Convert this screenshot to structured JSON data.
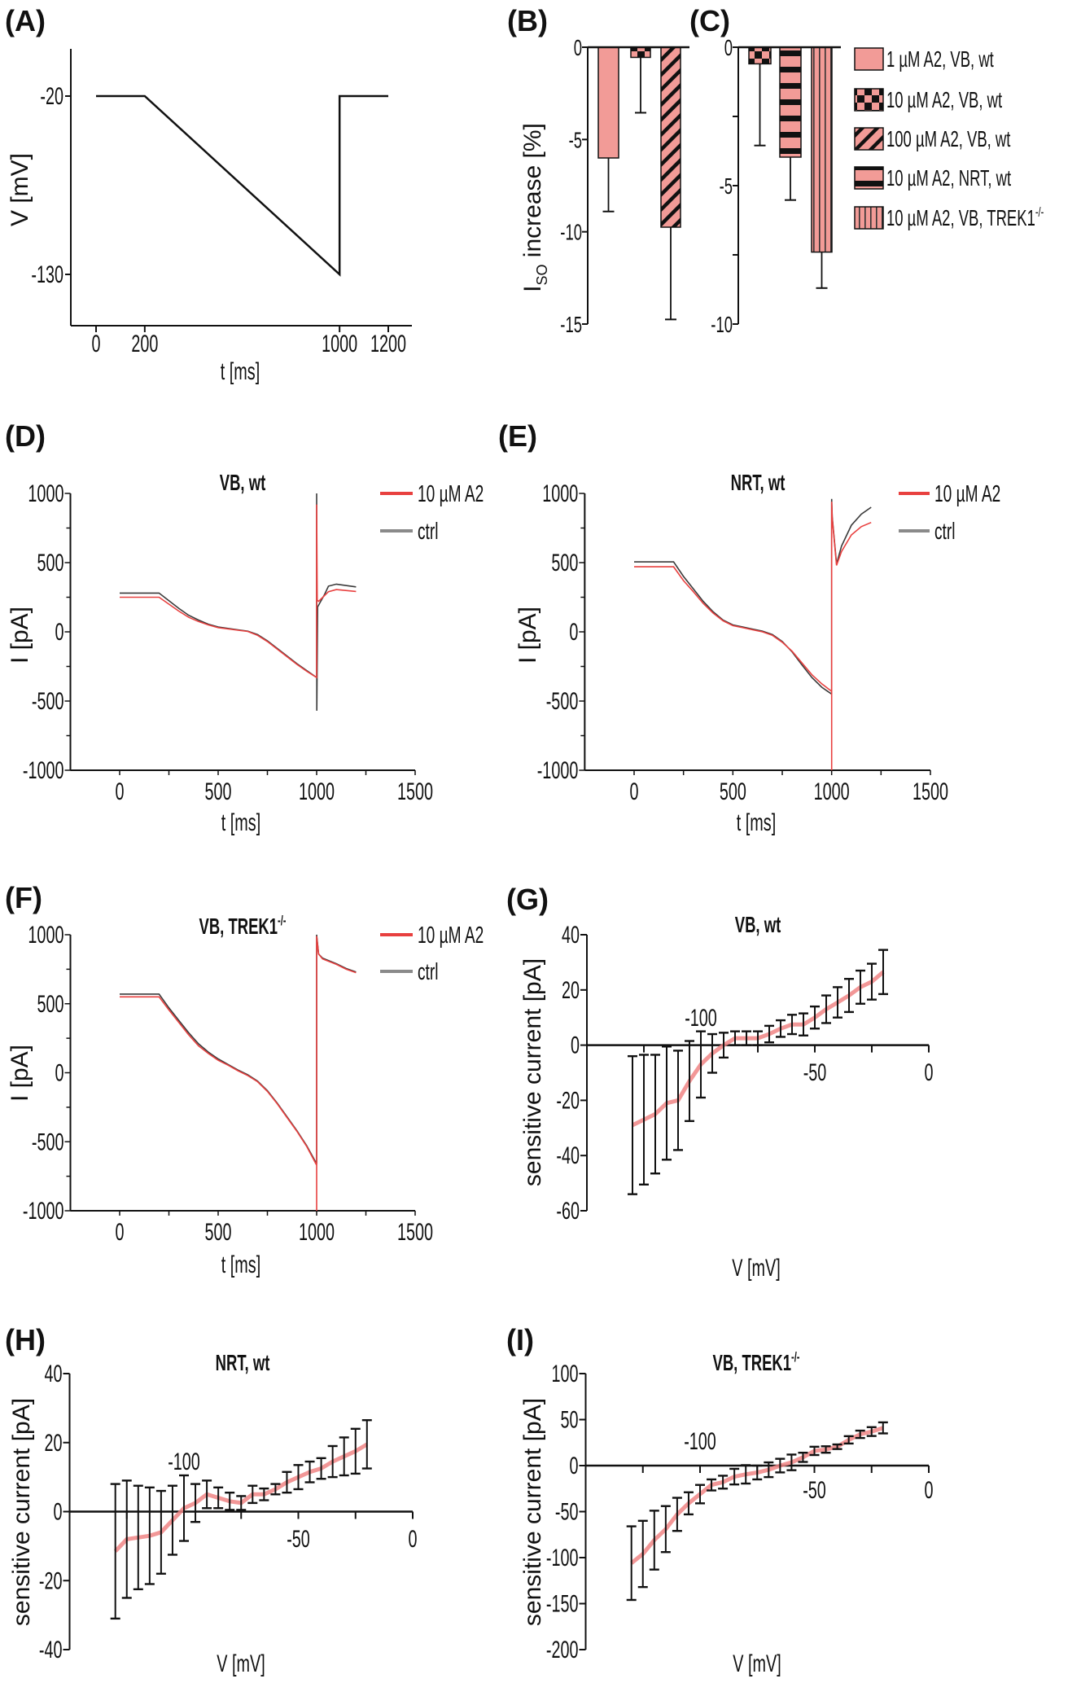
{
  "colors": {
    "bar_fill": "#f29b97",
    "a2_trace": "#e8403f",
    "ctrl_trace": "#3a3a3a",
    "ctrl_legend": "#8a8a8a",
    "iv_line": "#f08585",
    "axis": "#111111"
  },
  "chart_data": [
    {
      "panel": "(A)",
      "type": "line",
      "xlabel": "t [ms]",
      "ylabel": "V [mV]",
      "xticks": [
        0,
        200,
        1000,
        1200
      ],
      "yticks": [
        -20,
        -130
      ],
      "series": [
        {
          "x": [
            0,
            200,
            1000,
            1000,
            1200
          ],
          "y": [
            -20,
            -20,
            -130,
            -20,
            -20
          ],
          "color": "#111111"
        }
      ]
    },
    {
      "panel": "(B)",
      "type": "bar",
      "ylabel": {
        "main": "I",
        "sub": "SO",
        "rest": " increase [%]"
      },
      "yticks": [
        0,
        -5,
        -10,
        -15
      ],
      "ylim": [
        -15,
        0
      ],
      "bars": [
        {
          "legend_index": 0,
          "value": -6.0,
          "error": 2.9,
          "pattern": "solid"
        },
        {
          "legend_index": 1,
          "value": -0.55,
          "error": 3.0,
          "pattern": "checker"
        },
        {
          "legend_index": 2,
          "value": -9.75,
          "error": 5.0,
          "pattern": "diagonal"
        }
      ]
    },
    {
      "panel": "(C)",
      "type": "bar",
      "yticks": [
        0,
        -5,
        -10
      ],
      "minor_yticks": [
        -2.5,
        -7.5
      ],
      "ylim": [
        -10,
        0
      ],
      "bars": [
        {
          "legend_index": 1,
          "value": -0.6,
          "error": 2.95,
          "pattern": "checker"
        },
        {
          "legend_index": 3,
          "value": -3.97,
          "error": 1.55,
          "pattern": "horizontal"
        },
        {
          "legend_index": 4,
          "value": -7.4,
          "error": 1.3,
          "pattern": "vertical"
        }
      ],
      "legend": [
        {
          "text": "1 µM A2, VB, wt",
          "sup": "",
          "pattern": "solid"
        },
        {
          "text": "10 µM A2, VB, wt",
          "sup": "",
          "pattern": "checker"
        },
        {
          "text": "100 µM A2, VB, wt",
          "sup": "",
          "pattern": "diagonal"
        },
        {
          "text": "10 µM A2, NRT, wt",
          "sup": "",
          "pattern": "horizontal"
        },
        {
          "text": "10 µM A2, VB, TREK1",
          "sup": "-/-",
          "pattern": "vertical"
        }
      ],
      "legend_placement": "right"
    },
    {
      "panel": "(D)",
      "type": "line",
      "title": "VB, wt",
      "title_sup": "",
      "xlabel": "t [ms]",
      "ylabel": "I [pA]",
      "xticks": [
        0,
        500,
        1000,
        1500
      ],
      "yticks": [
        -1000,
        -500,
        0,
        500,
        1000
      ],
      "xlim": [
        -250,
        1500
      ],
      "ylim": [
        -1000,
        1000
      ],
      "legend_placement": "top-right",
      "series": [
        {
          "name": "ctrl",
          "color": "#3a3a3a",
          "points": [
            [
              0,
              280
            ],
            [
              200,
              280
            ],
            [
              250,
              225
            ],
            [
              300,
              170
            ],
            [
              350,
              120
            ],
            [
              400,
              85
            ],
            [
              450,
              55
            ],
            [
              500,
              35
            ],
            [
              600,
              15
            ],
            [
              650,
              5
            ],
            [
              700,
              -20
            ],
            [
              750,
              -65
            ],
            [
              800,
              -120
            ],
            [
              850,
              -175
            ],
            [
              900,
              -230
            ],
            [
              950,
              -280
            ],
            [
              1000,
              -330
            ],
            [
              1000,
              1000
            ],
            [
              1001,
              -570
            ],
            [
              1005,
              180
            ],
            [
              1040,
              270
            ],
            [
              1060,
              330
            ],
            [
              1100,
              345
            ],
            [
              1200,
              325
            ]
          ]
        },
        {
          "name": "10 µM A2",
          "color": "#e8403f",
          "points": [
            [
              0,
              250
            ],
            [
              200,
              250
            ],
            [
              250,
              200
            ],
            [
              300,
              150
            ],
            [
              350,
              105
            ],
            [
              400,
              75
            ],
            [
              450,
              50
            ],
            [
              500,
              30
            ],
            [
              600,
              12
            ],
            [
              650,
              3
            ],
            [
              700,
              -25
            ],
            [
              750,
              -70
            ],
            [
              800,
              -125
            ],
            [
              850,
              -180
            ],
            [
              900,
              -235
            ],
            [
              950,
              -285
            ],
            [
              1000,
              -330
            ],
            [
              1000,
              920
            ],
            [
              1003,
              230
            ],
            [
              1010,
              220
            ],
            [
              1060,
              290
            ],
            [
              1100,
              305
            ],
            [
              1200,
              292
            ]
          ]
        }
      ]
    },
    {
      "panel": "(E)",
      "type": "line",
      "title": "NRT, wt",
      "title_sup": "",
      "xlabel": "t [ms]",
      "ylabel": "I [pA]",
      "xticks": [
        0,
        500,
        1000,
        1500
      ],
      "yticks": [
        -1000,
        -500,
        0,
        500,
        1000
      ],
      "xlim": [
        -250,
        1500
      ],
      "ylim": [
        -1000,
        1000
      ],
      "legend_placement": "top-right",
      "series": [
        {
          "name": "ctrl",
          "color": "#3a3a3a",
          "points": [
            [
              0,
              505
            ],
            [
              200,
              505
            ],
            [
              250,
              400
            ],
            [
              300,
              310
            ],
            [
              350,
              220
            ],
            [
              400,
              145
            ],
            [
              450,
              85
            ],
            [
              500,
              50
            ],
            [
              550,
              35
            ],
            [
              600,
              20
            ],
            [
              650,
              5
            ],
            [
              700,
              -20
            ],
            [
              750,
              -70
            ],
            [
              800,
              -145
            ],
            [
              850,
              -240
            ],
            [
              900,
              -330
            ],
            [
              950,
              -400
            ],
            [
              1000,
              -450
            ],
            [
              1000,
              960
            ],
            [
              1003,
              830
            ],
            [
              1025,
              490
            ],
            [
              1050,
              620
            ],
            [
              1100,
              770
            ],
            [
              1150,
              850
            ],
            [
              1200,
              900
            ]
          ]
        },
        {
          "name": "10 µM A2",
          "color": "#e8403f",
          "points": [
            [
              0,
              470
            ],
            [
              200,
              470
            ],
            [
              250,
              370
            ],
            [
              300,
              290
            ],
            [
              350,
              205
            ],
            [
              400,
              135
            ],
            [
              450,
              80
            ],
            [
              500,
              45
            ],
            [
              550,
              30
            ],
            [
              600,
              15
            ],
            [
              650,
              0
            ],
            [
              700,
              -25
            ],
            [
              750,
              -75
            ],
            [
              800,
              -140
            ],
            [
              850,
              -225
            ],
            [
              900,
              -310
            ],
            [
              950,
              -375
            ],
            [
              1000,
              -430
            ],
            [
              1000,
              -1000
            ],
            [
              1000,
              940
            ],
            [
              1003,
              820
            ],
            [
              1025,
              480
            ],
            [
              1050,
              580
            ],
            [
              1100,
              700
            ],
            [
              1150,
              760
            ],
            [
              1200,
              790
            ]
          ]
        }
      ]
    },
    {
      "panel": "(F)",
      "type": "line",
      "title": "VB, TREK1",
      "title_sup": "-/-",
      "xlabel": "t [ms]",
      "ylabel": "I [pA]",
      "xticks": [
        0,
        500,
        1000,
        1500
      ],
      "yticks": [
        -1000,
        -500,
        0,
        500,
        1000
      ],
      "xlim": [
        -250,
        1500
      ],
      "ylim": [
        -1000,
        1000
      ],
      "legend_placement": "top-right",
      "series": [
        {
          "name": "ctrl",
          "color": "#3a3a3a",
          "points": [
            [
              0,
              570
            ],
            [
              200,
              570
            ],
            [
              250,
              470
            ],
            [
              300,
              380
            ],
            [
              350,
              290
            ],
            [
              400,
              210
            ],
            [
              450,
              150
            ],
            [
              500,
              100
            ],
            [
              550,
              60
            ],
            [
              600,
              20
            ],
            [
              650,
              -15
            ],
            [
              700,
              -60
            ],
            [
              750,
              -130
            ],
            [
              800,
              -220
            ],
            [
              850,
              -320
            ],
            [
              900,
              -420
            ],
            [
              950,
              -530
            ],
            [
              1000,
              -660
            ],
            [
              1000,
              1000
            ],
            [
              1010,
              860
            ],
            [
              1030,
              830
            ],
            [
              1100,
              790
            ],
            [
              1150,
              755
            ],
            [
              1200,
              730
            ]
          ]
        },
        {
          "name": "10 µM A2",
          "color": "#e8403f",
          "points": [
            [
              0,
              550
            ],
            [
              200,
              550
            ],
            [
              250,
              455
            ],
            [
              300,
              365
            ],
            [
              350,
              275
            ],
            [
              400,
              195
            ],
            [
              450,
              140
            ],
            [
              500,
              90
            ],
            [
              550,
              55
            ],
            [
              600,
              15
            ],
            [
              650,
              -20
            ],
            [
              700,
              -65
            ],
            [
              750,
              -135
            ],
            [
              800,
              -225
            ],
            [
              850,
              -325
            ],
            [
              900,
              -425
            ],
            [
              950,
              -535
            ],
            [
              1000,
              -670
            ],
            [
              1000,
              -1000
            ],
            [
              1000,
              990
            ],
            [
              1010,
              860
            ],
            [
              1030,
              825
            ],
            [
              1100,
              785
            ],
            [
              1150,
              750
            ],
            [
              1200,
              725
            ]
          ]
        }
      ]
    },
    {
      "panel": "(G)",
      "type": "line",
      "title": "VB, wt",
      "title_sup": "",
      "xlabel": "V [mV]",
      "ylabel": "sensitive current [pA]",
      "xticks": [
        -100,
        -50,
        0
      ],
      "minor_xticks": [
        -125,
        -75,
        -25
      ],
      "yticks": [
        40,
        20,
        0,
        -20,
        -40,
        -60
      ],
      "xlim": [
        -150,
        0
      ],
      "ylim": [
        -60,
        40
      ],
      "x": [
        -130,
        -125,
        -120,
        -115,
        -110,
        -105,
        -100,
        -95,
        -90,
        -85,
        -80,
        -75,
        -70,
        -65,
        -60,
        -55,
        -50,
        -45,
        -40,
        -35,
        -30,
        -25,
        -20
      ],
      "y": [
        -29,
        -27,
        -25,
        -21,
        -20,
        -13,
        -7,
        -3,
        0,
        2.5,
        2.5,
        2.5,
        4,
        6,
        7.5,
        7.5,
        10,
        13,
        15.5,
        18,
        21,
        23,
        26.5
      ],
      "error": [
        25,
        23.5,
        21.5,
        20.5,
        18,
        14.5,
        12,
        7,
        4.5,
        2.5,
        2.5,
        2.5,
        3,
        3,
        3.5,
        4,
        4,
        5,
        5.5,
        6,
        6,
        6.5,
        8
      ]
    },
    {
      "panel": "(H)",
      "type": "line",
      "title": "NRT, wt",
      "title_sup": "",
      "xlabel": "V [mV]",
      "ylabel": "sensitive current [pA]",
      "xticks": [
        -100,
        -50,
        0
      ],
      "minor_xticks": [
        -125,
        -75,
        -25
      ],
      "yticks": [
        40,
        20,
        0,
        -20,
        -40
      ],
      "xlim": [
        -150,
        0
      ],
      "ylim": [
        -40,
        40
      ],
      "x": [
        -130,
        -125,
        -120,
        -115,
        -110,
        -105,
        -100,
        -95,
        -90,
        -85,
        -80,
        -75,
        -70,
        -65,
        -60,
        -55,
        -50,
        -45,
        -40,
        -35,
        -30,
        -25,
        -20
      ],
      "y": [
        -11.5,
        -8,
        -7.5,
        -7,
        -6,
        -2.5,
        1,
        2.5,
        5,
        4,
        3,
        2.5,
        5,
        5,
        6.5,
        8.5,
        10,
        11.5,
        12.5,
        14.5,
        16,
        17.5,
        19.5
      ],
      "error": [
        19.5,
        17,
        15,
        14,
        12,
        10,
        9.5,
        5.5,
        4,
        3,
        2.5,
        2,
        2.5,
        1.7,
        1.5,
        3,
        3.5,
        3,
        3,
        4.5,
        5.5,
        6.5,
        7
      ]
    },
    {
      "panel": "(I)",
      "type": "line",
      "title": "VB, TREK1",
      "title_sup": "-/-",
      "xlabel": "V [mV]",
      "ylabel": "sensitive current [pA]",
      "xticks": [
        -100,
        -50,
        0
      ],
      "minor_xticks": [
        -125,
        -75,
        -25
      ],
      "yticks": [
        100,
        50,
        0,
        -50,
        -100,
        -150,
        -200
      ],
      "xlim": [
        -150,
        0
      ],
      "ylim": [
        -200,
        100
      ],
      "x": [
        -130,
        -125,
        -120,
        -115,
        -110,
        -105,
        -100,
        -95,
        -90,
        -85,
        -80,
        -75,
        -70,
        -65,
        -60,
        -55,
        -50,
        -45,
        -40,
        -35,
        -30,
        -25,
        -20
      ],
      "y": [
        -106,
        -96,
        -81,
        -69,
        -53,
        -41,
        -31,
        -21,
        -18,
        -12,
        -9.5,
        -7.5,
        -4.5,
        0,
        3.5,
        9,
        16,
        17.5,
        20.5,
        28,
        34,
        37,
        41
      ],
      "error": [
        40,
        36,
        32,
        25,
        18,
        12,
        10,
        6,
        7,
        8.5,
        10,
        7.5,
        8,
        7.4,
        8.5,
        5,
        4.5,
        3.5,
        2.5,
        4,
        4,
        4.8,
        6
      ]
    }
  ]
}
